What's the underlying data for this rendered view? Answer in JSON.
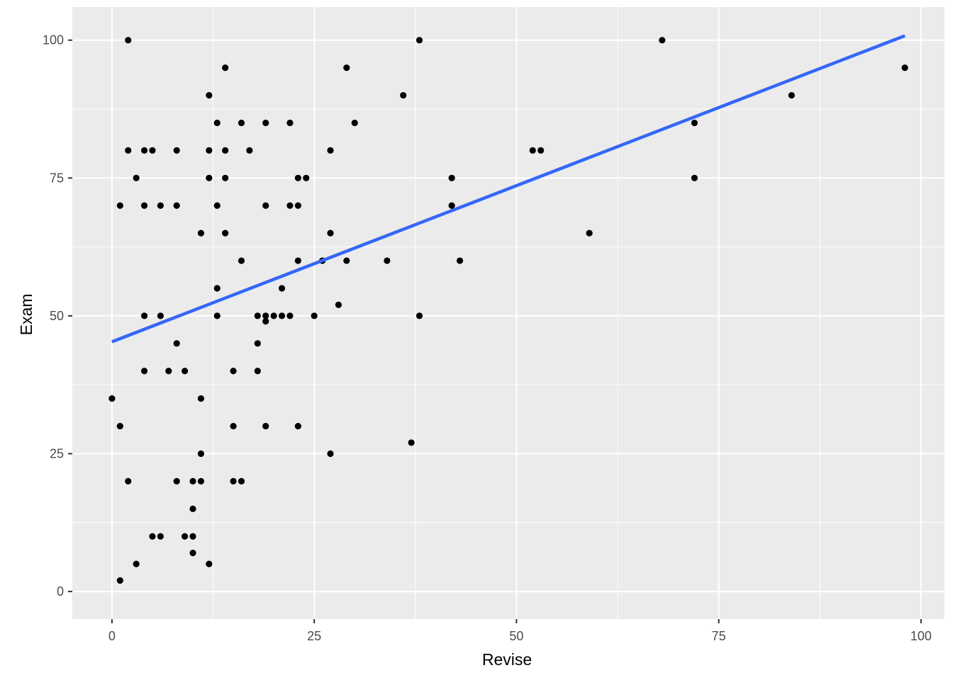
{
  "chart_data": {
    "type": "scatter",
    "xlabel": "Revise",
    "ylabel": "Exam",
    "xlim": [
      -4.9,
      102.9
    ],
    "ylim": [
      -5,
      106
    ],
    "x_ticks": [
      0,
      25,
      50,
      75,
      100
    ],
    "y_ticks": [
      0,
      25,
      50,
      75,
      100
    ],
    "x_minor": [
      12.5,
      37.5,
      62.5,
      87.5
    ],
    "y_minor": [
      12.5,
      37.5,
      62.5,
      87.5
    ],
    "x_tick_labels": [
      "0",
      "25",
      "50",
      "75",
      "100"
    ],
    "y_tick_labels": [
      "0",
      "25",
      "50",
      "75",
      "100"
    ],
    "grid": true,
    "points": [
      [
        2,
        100
      ],
      [
        38,
        100
      ],
      [
        68,
        100
      ],
      [
        14,
        95
      ],
      [
        29,
        95
      ],
      [
        98,
        95
      ],
      [
        12,
        90
      ],
      [
        36,
        90
      ],
      [
        84,
        90
      ],
      [
        13,
        85
      ],
      [
        16,
        85
      ],
      [
        19,
        85
      ],
      [
        22,
        85
      ],
      [
        30,
        85
      ],
      [
        72,
        85
      ],
      [
        2,
        80
      ],
      [
        4,
        80
      ],
      [
        5,
        80
      ],
      [
        8,
        80
      ],
      [
        12,
        80
      ],
      [
        14,
        80
      ],
      [
        17,
        80
      ],
      [
        27,
        80
      ],
      [
        52,
        80
      ],
      [
        53,
        80
      ],
      [
        3,
        75
      ],
      [
        12,
        75
      ],
      [
        14,
        75
      ],
      [
        23,
        75
      ],
      [
        24,
        75
      ],
      [
        42,
        75
      ],
      [
        72,
        75
      ],
      [
        1,
        70
      ],
      [
        4,
        70
      ],
      [
        6,
        70
      ],
      [
        8,
        70
      ],
      [
        13,
        70
      ],
      [
        19,
        70
      ],
      [
        22,
        70
      ],
      [
        23,
        70
      ],
      [
        42,
        70
      ],
      [
        11,
        65
      ],
      [
        14,
        65
      ],
      [
        27,
        65
      ],
      [
        59,
        65
      ],
      [
        16,
        60
      ],
      [
        23,
        60
      ],
      [
        26,
        60
      ],
      [
        29,
        60
      ],
      [
        34,
        60
      ],
      [
        43,
        60
      ],
      [
        13,
        55
      ],
      [
        21,
        55
      ],
      [
        28,
        52
      ],
      [
        4,
        50
      ],
      [
        6,
        50
      ],
      [
        13,
        50
      ],
      [
        18,
        50
      ],
      [
        19,
        50
      ],
      [
        20,
        50
      ],
      [
        21,
        50
      ],
      [
        22,
        50
      ],
      [
        25,
        50
      ],
      [
        38,
        50
      ],
      [
        19,
        49
      ],
      [
        8,
        45
      ],
      [
        18,
        45
      ],
      [
        4,
        40
      ],
      [
        7,
        40
      ],
      [
        9,
        40
      ],
      [
        15,
        40
      ],
      [
        18,
        40
      ],
      [
        0,
        35
      ],
      [
        11,
        35
      ],
      [
        1,
        30
      ],
      [
        15,
        30
      ],
      [
        19,
        30
      ],
      [
        23,
        30
      ],
      [
        37,
        27
      ],
      [
        11,
        25
      ],
      [
        27,
        25
      ],
      [
        2,
        20
      ],
      [
        8,
        20
      ],
      [
        10,
        20
      ],
      [
        11,
        20
      ],
      [
        15,
        20
      ],
      [
        16,
        20
      ],
      [
        10,
        15
      ],
      [
        5,
        10
      ],
      [
        6,
        10
      ],
      [
        9,
        10
      ],
      [
        10,
        10
      ],
      [
        10,
        7
      ],
      [
        3,
        5
      ],
      [
        12,
        5
      ],
      [
        1,
        2
      ]
    ],
    "trend_line": {
      "x": [
        0,
        98
      ],
      "y": [
        45.3,
        100.8
      ],
      "color": "#3366ff"
    },
    "panel_color": "#ebebeb",
    "grid_color": "#ffffff",
    "point_color": "#000000"
  }
}
